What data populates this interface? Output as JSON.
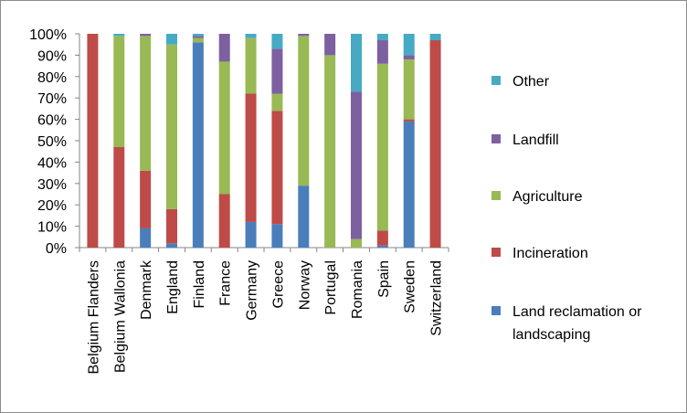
{
  "chart_data": {
    "type": "bar",
    "stacked": true,
    "percent_stacked": true,
    "categories": [
      "Belgium Flanders",
      "Belgium Wallonia",
      "Denmark",
      "England",
      "Finland",
      "France",
      "Germany",
      "Greece",
      "Norway",
      "Portugal",
      "Romania",
      "Spain",
      "Sweden",
      "Switzerland"
    ],
    "series": [
      {
        "name": "Land reclamation or landscaping",
        "color": "#4a7ebb",
        "values": [
          0,
          0,
          9,
          2,
          96,
          0,
          12,
          11,
          29,
          0,
          0,
          1,
          59,
          0
        ]
      },
      {
        "name": "Incineration",
        "color": "#be4b48",
        "values": [
          100,
          47,
          27,
          16,
          0,
          25,
          60,
          53,
          0,
          0,
          0,
          7,
          1,
          97
        ]
      },
      {
        "name": "Agriculture",
        "color": "#98b954",
        "values": [
          0,
          52,
          63,
          77,
          2,
          62,
          26,
          8,
          70,
          90,
          4,
          78,
          28,
          0
        ]
      },
      {
        "name": "Landfill",
        "color": "#7d60a0",
        "values": [
          0,
          0,
          1,
          0,
          1,
          13,
          0,
          21,
          1,
          10,
          69,
          11,
          2,
          0
        ]
      },
      {
        "name": "Other",
        "color": "#46aac5",
        "values": [
          0,
          1,
          0,
          5,
          1,
          0,
          2,
          7,
          0,
          0,
          27,
          3,
          10,
          3
        ]
      }
    ],
    "y_ticks": [
      "0%",
      "10%",
      "20%",
      "30%",
      "40%",
      "50%",
      "60%",
      "70%",
      "80%",
      "90%",
      "100%"
    ],
    "ylim": [
      0,
      100
    ],
    "grid": false,
    "legend_position": "right",
    "legend_order": [
      "Other",
      "Landfill",
      "Agriculture",
      "Incineration",
      "Land reclamation or landscaping"
    ],
    "legend_lines": {
      "Land reclamation or landscaping": [
        "Land reclamation or",
        "landscaping"
      ]
    }
  }
}
